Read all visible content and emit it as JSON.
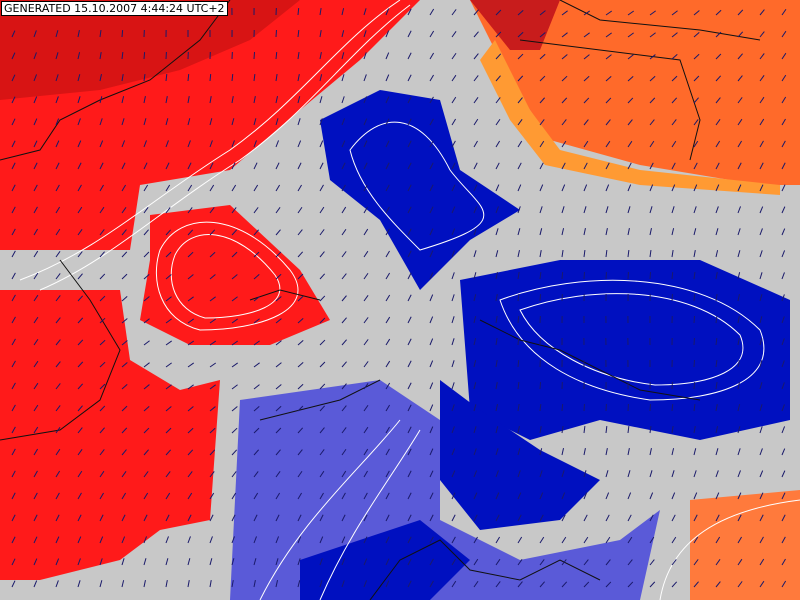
{
  "header": {
    "generated": "GENERATED 15.10.2007 4:44:24 UTC+2"
  }
}
